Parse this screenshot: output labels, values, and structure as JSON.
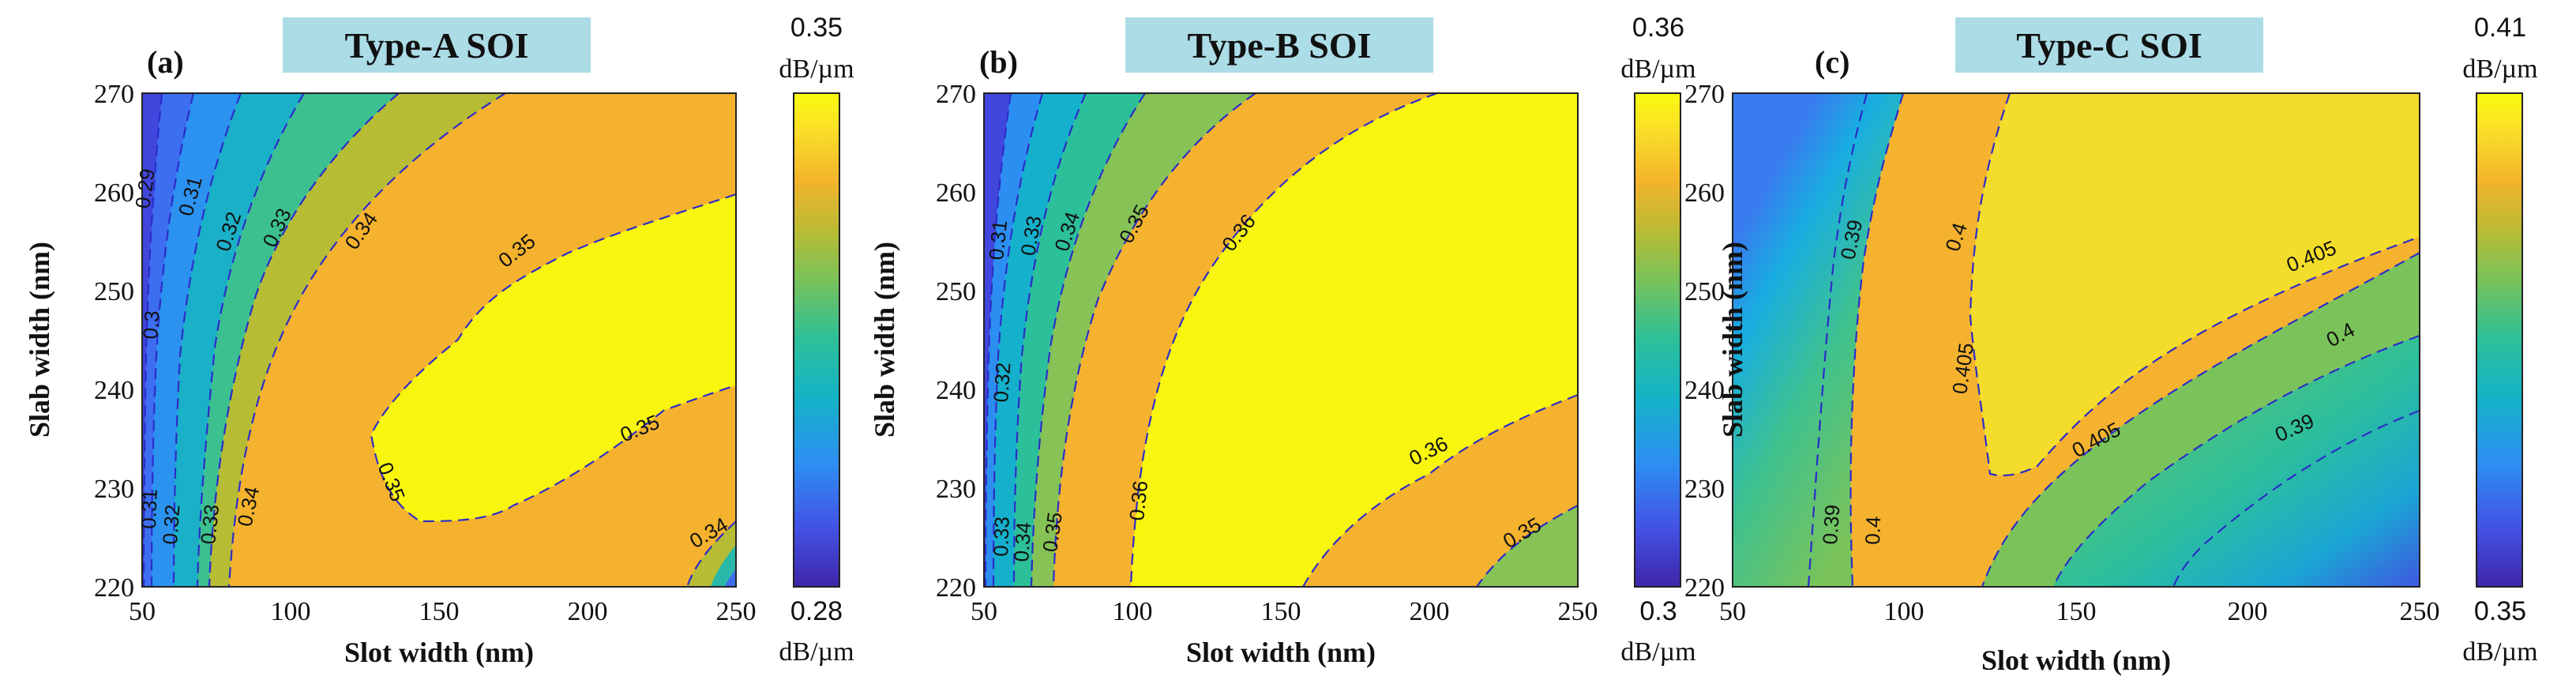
{
  "chart_data": [
    {
      "type": "contour",
      "panel_label": "(a)",
      "title": "Type-A SOI",
      "xlabel": "Slot width (nm)",
      "ylabel": "Slab width (nm)",
      "xlim": [
        50,
        250
      ],
      "ylim": [
        220,
        270
      ],
      "xticks": [
        "50",
        "100",
        "150",
        "200",
        "250"
      ],
      "yticks": [
        "220",
        "230",
        "240",
        "250",
        "260",
        "270"
      ],
      "colorbar": {
        "max_label": "0.35",
        "min_label": "0.28",
        "unit": "dB/µm",
        "range": [
          0.28,
          0.35
        ]
      },
      "levels": [
        "0.29",
        "0.3",
        "0.31",
        "0.32",
        "0.33",
        "0.34",
        "0.35"
      ],
      "contour_labels": [
        "0.29",
        "0.3",
        "0.31",
        "0.31",
        "0.32",
        "0.32",
        "0.33",
        "0.33",
        "0.34",
        "0.34",
        "0.34",
        "0.35",
        "0.35",
        "0.35"
      ]
    },
    {
      "type": "contour",
      "panel_label": "(b)",
      "title": "Type-B SOI",
      "xlabel": "Slot width (nm)",
      "ylabel": "Slab width (nm)",
      "xlim": [
        50,
        250
      ],
      "ylim": [
        220,
        270
      ],
      "xticks": [
        "50",
        "100",
        "150",
        "200",
        "250"
      ],
      "yticks": [
        "220",
        "230",
        "240",
        "250",
        "260",
        "270"
      ],
      "colorbar": {
        "max_label": "0.36",
        "min_label": "0.3",
        "unit": "dB/µm",
        "range": [
          0.3,
          0.36
        ]
      },
      "levels": [
        "0.31",
        "0.32",
        "0.33",
        "0.34",
        "0.35",
        "0.36"
      ],
      "contour_labels": [
        "0.31",
        "0.32",
        "0.33",
        "0.33",
        "0.34",
        "0.34",
        "0.35",
        "0.35",
        "0.35",
        "0.36",
        "0.36",
        "0.36"
      ]
    },
    {
      "type": "contour",
      "panel_label": "(c)",
      "title": "Type-C SOI",
      "xlabel": "Slot width (nm)",
      "ylabel": "Slab width (nm)",
      "xlim": [
        50,
        250
      ],
      "ylim": [
        220,
        270
      ],
      "xticks": [
        "50",
        "100",
        "150",
        "200",
        "250"
      ],
      "yticks": [
        "220",
        "230",
        "240",
        "250",
        "260",
        "270"
      ],
      "colorbar": {
        "max_label": "0.41",
        "min_label": "0.35",
        "unit": "dB/µm",
        "range": [
          0.35,
          0.41
        ]
      },
      "levels": [
        "0.39",
        "0.4",
        "0.405"
      ],
      "contour_labels": [
        "0.39",
        "0.39",
        "0.39",
        "0.4",
        "0.4",
        "0.4",
        "0.405",
        "0.405",
        "0.405"
      ]
    }
  ],
  "colors": {
    "title_box": "#acdce6",
    "contour_line": "#2c2cc8",
    "viridis_like": [
      "#3e26a8",
      "#4352e6",
      "#2d8ef2",
      "#14b2c8",
      "#2cc09a",
      "#78c25a",
      "#b8bc34",
      "#f3b32c",
      "#fadd2a",
      "#f9fb0e"
    ]
  }
}
